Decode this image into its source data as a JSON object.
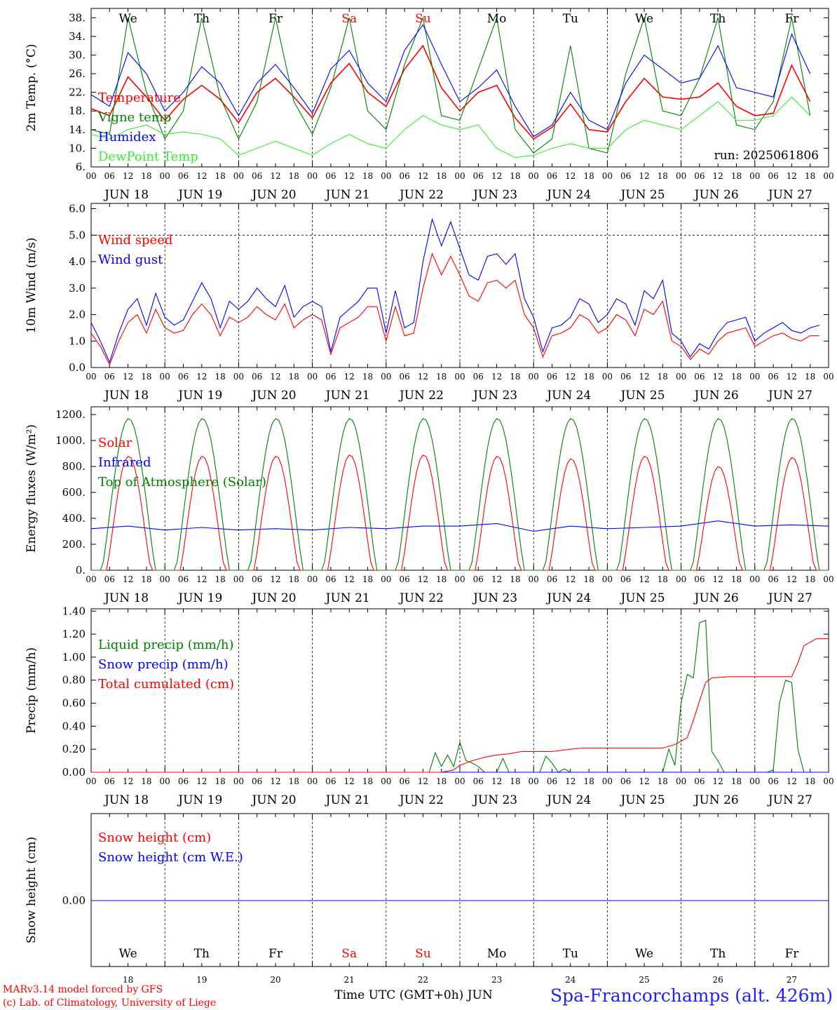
{
  "chart_data": [
    {
      "id": "temp",
      "type": "line",
      "ylabel": "2m Temp. (°C)",
      "ylim": [
        6,
        40
      ],
      "yticks": [
        6,
        10,
        14,
        18,
        22,
        26,
        30,
        34,
        38
      ],
      "ytick_labels": [
        "6.",
        "10.",
        "14.",
        "18.",
        "22.",
        "26.",
        "30.",
        "34.",
        "38."
      ],
      "run_label": "run: 2025061806",
      "series": [
        {
          "name": "Temperature",
          "color": "#ff0000",
          "x": [
            0,
            6,
            12,
            18,
            24,
            30,
            36,
            42,
            48,
            54,
            60,
            66,
            72,
            78,
            84,
            90,
            96,
            102,
            108,
            114,
            120,
            126,
            132,
            138,
            144,
            150,
            156,
            162,
            168,
            174,
            180,
            186,
            192,
            198,
            204,
            210,
            216,
            222,
            228,
            234
          ],
          "values": [
            18.5,
            17,
            25.3,
            21,
            16,
            20.5,
            23.5,
            20.5,
            15.5,
            22,
            25,
            21,
            16.5,
            24,
            28.2,
            22,
            19,
            27,
            32,
            23,
            18,
            22,
            23.5,
            16.5,
            12,
            14.5,
            19.5,
            14,
            13.5,
            20,
            25,
            21,
            20.5,
            21,
            24,
            19,
            17,
            17.5,
            27.8,
            20
          ]
        },
        {
          "name": "Vigne temp",
          "color": "#008000",
          "x": [
            0,
            6,
            12,
            18,
            24,
            30,
            36,
            42,
            48,
            54,
            60,
            66,
            72,
            78,
            84,
            90,
            96,
            102,
            108,
            114,
            120,
            126,
            132,
            138,
            144,
            150,
            156,
            162,
            168,
            174,
            180,
            186,
            192,
            198,
            204,
            210,
            216,
            222,
            228,
            234
          ],
          "values": [
            14,
            13,
            38,
            22,
            12,
            18,
            38,
            21,
            12,
            20,
            38,
            20,
            13,
            23,
            38,
            18,
            14,
            28,
            38,
            17,
            16,
            27,
            38,
            14,
            9,
            12,
            32,
            10,
            9,
            26,
            38,
            18,
            17,
            25,
            38,
            15,
            14,
            20,
            38,
            17
          ]
        },
        {
          "name": "Humidex",
          "color": "#0000ff",
          "x": [
            0,
            6,
            12,
            18,
            24,
            30,
            36,
            42,
            48,
            54,
            60,
            66,
            72,
            78,
            84,
            90,
            96,
            102,
            108,
            114,
            120,
            126,
            132,
            138,
            144,
            150,
            156,
            162,
            168,
            174,
            180,
            186,
            192,
            198,
            204,
            210,
            216,
            222,
            228,
            234
          ],
          "values": [
            21.5,
            19,
            30.5,
            26,
            18,
            22,
            27.5,
            24,
            17,
            24,
            28,
            23,
            17.5,
            27,
            31,
            24,
            20,
            31,
            36.5,
            28,
            20,
            23,
            26.8,
            19,
            12.5,
            15,
            22,
            16,
            14,
            24,
            30,
            27,
            24,
            25,
            32,
            23,
            22,
            21,
            34.5,
            26
          ]
        },
        {
          "name": "DewPoint Temp",
          "color": "#33ee33",
          "x": [
            0,
            6,
            12,
            18,
            24,
            30,
            36,
            42,
            48,
            54,
            60,
            66,
            72,
            78,
            84,
            90,
            96,
            102,
            108,
            114,
            120,
            126,
            132,
            138,
            144,
            150,
            156,
            162,
            168,
            174,
            180,
            186,
            192,
            198,
            204,
            210,
            216,
            222,
            228,
            234
          ],
          "values": [
            13,
            12,
            14,
            15,
            13,
            13.5,
            13,
            12,
            8.5,
            10,
            11.5,
            10,
            8.5,
            11,
            13,
            11,
            10,
            14,
            17,
            15,
            14,
            15,
            10,
            8,
            8.5,
            10,
            11,
            10,
            10,
            14,
            16,
            15,
            14,
            17,
            20,
            16,
            16,
            17,
            21,
            17
          ]
        }
      ]
    },
    {
      "id": "wind",
      "type": "line",
      "ylabel": "10m Wind (m/s)",
      "ylim": [
        0,
        6
      ],
      "yticks": [
        0,
        1,
        2,
        3,
        4,
        5,
        6
      ],
      "ytick_labels": [
        "0.0",
        "1.0",
        "2.0",
        "3.0",
        "4.0",
        "5.0",
        "6.0"
      ],
      "ref_line": 5,
      "series": [
        {
          "name": "Wind speed",
          "color": "#ff0000",
          "x": [
            0,
            3,
            6,
            9,
            12,
            15,
            18,
            21,
            24,
            27,
            30,
            33,
            36,
            39,
            42,
            45,
            48,
            51,
            54,
            57,
            60,
            63,
            66,
            69,
            72,
            75,
            78,
            81,
            84,
            87,
            90,
            93,
            96,
            99,
            102,
            105,
            108,
            111,
            114,
            117,
            120,
            123,
            126,
            129,
            132,
            135,
            138,
            141,
            144,
            147,
            150,
            153,
            156,
            159,
            162,
            165,
            168,
            171,
            174,
            177,
            180,
            183,
            186,
            189,
            192,
            195,
            198,
            201,
            204,
            207,
            210,
            213,
            216,
            219,
            222,
            225,
            228,
            231,
            234,
            237
          ],
          "values": [
            1.3,
            0.8,
            0.1,
            1.0,
            1.7,
            2.0,
            1.3,
            2.2,
            1.5,
            1.3,
            1.4,
            2.0,
            2.4,
            2.0,
            1.2,
            1.9,
            1.7,
            1.9,
            2.3,
            2.0,
            1.8,
            2.4,
            1.5,
            1.8,
            2.0,
            1.8,
            0.5,
            1.5,
            1.7,
            1.9,
            2.3,
            2.3,
            1.0,
            2.3,
            1.2,
            1.3,
            3.0,
            4.3,
            3.5,
            4.2,
            3.5,
            2.7,
            2.5,
            3.2,
            3.3,
            3.0,
            3.3,
            2.0,
            1.5,
            0.4,
            1.2,
            1.3,
            1.5,
            2.0,
            1.8,
            1.3,
            1.5,
            2.0,
            1.8,
            1.2,
            2.2,
            2.0,
            2.5,
            1.0,
            0.8,
            0.3,
            0.7,
            0.5,
            1.0,
            1.3,
            1.4,
            1.5,
            0.8,
            1.0,
            1.2,
            1.3,
            1.1,
            1.0,
            1.2,
            1.2
          ]
        },
        {
          "name": "Wind gust",
          "color": "#0000ff",
          "x": [
            0,
            3,
            6,
            9,
            12,
            15,
            18,
            21,
            24,
            27,
            30,
            33,
            36,
            39,
            42,
            45,
            48,
            51,
            54,
            57,
            60,
            63,
            66,
            69,
            72,
            75,
            78,
            81,
            84,
            87,
            90,
            93,
            96,
            99,
            102,
            105,
            108,
            111,
            114,
            117,
            120,
            123,
            126,
            129,
            132,
            135,
            138,
            141,
            144,
            147,
            150,
            153,
            156,
            159,
            162,
            165,
            168,
            171,
            174,
            177,
            180,
            183,
            186,
            189,
            192,
            195,
            198,
            201,
            204,
            207,
            210,
            213,
            216,
            219,
            222,
            225,
            228,
            231,
            234,
            237
          ],
          "values": [
            1.7,
            1.0,
            0.2,
            1.3,
            2.2,
            2.6,
            1.6,
            2.8,
            1.9,
            1.6,
            1.8,
            2.5,
            3.2,
            2.6,
            1.5,
            2.5,
            2.2,
            2.5,
            3.0,
            2.6,
            2.3,
            3.1,
            1.9,
            2.3,
            2.5,
            2.3,
            0.6,
            1.9,
            2.2,
            2.5,
            3.0,
            3.0,
            1.3,
            2.9,
            1.5,
            1.7,
            4.0,
            5.6,
            4.6,
            5.5,
            4.5,
            3.5,
            3.3,
            4.2,
            4.3,
            3.9,
            4.3,
            2.6,
            1.9,
            0.6,
            1.5,
            1.6,
            1.9,
            2.6,
            2.4,
            1.7,
            2.0,
            2.6,
            2.4,
            1.6,
            2.9,
            2.6,
            3.3,
            1.3,
            1.0,
            0.4,
            0.9,
            0.7,
            1.3,
            1.7,
            1.8,
            1.9,
            1.0,
            1.3,
            1.5,
            1.7,
            1.4,
            1.3,
            1.5,
            1.6
          ]
        }
      ]
    },
    {
      "id": "energy",
      "type": "line",
      "ylabel": "Energy fluxes (W/m²)",
      "ylim": [
        0,
        1200
      ],
      "yticks": [
        0,
        200,
        400,
        600,
        800,
        1000,
        1200
      ],
      "ytick_labels": [
        "0.",
        "200.",
        "400.",
        "600.",
        "800.",
        "1000.",
        "1200."
      ],
      "series": [
        {
          "name": "Solar",
          "color": "#ff0000",
          "peaks": [
            880,
            880,
            880,
            890,
            890,
            880,
            860,
            880,
            800,
            870
          ],
          "pattern": "diurnal"
        },
        {
          "name": "Infrared",
          "color": "#0000ff",
          "x": [
            0,
            12,
            24,
            36,
            48,
            60,
            72,
            84,
            96,
            108,
            120,
            132,
            144,
            156,
            168,
            180,
            192,
            204,
            216,
            228,
            240
          ],
          "values": [
            320,
            340,
            310,
            330,
            310,
            320,
            310,
            330,
            320,
            340,
            340,
            360,
            300,
            340,
            320,
            330,
            340,
            380,
            340,
            350,
            340
          ]
        },
        {
          "name": "Top of Atmosphere (Solar)",
          "color": "#008000",
          "peak": 1170,
          "pattern": "diurnal"
        }
      ]
    },
    {
      "id": "precip",
      "type": "line",
      "ylabel": "Precip (mm/h)",
      "ylim": [
        0,
        1.4
      ],
      "yticks": [
        0,
        0.2,
        0.4,
        0.6,
        0.8,
        1.0,
        1.2,
        1.4
      ],
      "ytick_labels": [
        "0.00",
        "0.20",
        "0.40",
        "0.60",
        "0.80",
        "1.00",
        "1.20",
        "1.40"
      ],
      "series": [
        {
          "name": "Liquid precip (mm/h)",
          "color": "#008000",
          "x": [
            0,
            110,
            112,
            114,
            116,
            118,
            120,
            122,
            124,
            126,
            128,
            130,
            132,
            134,
            136,
            138,
            140,
            142,
            144,
            146,
            148,
            150,
            152,
            154,
            156,
            180,
            186,
            188,
            190,
            192,
            194,
            196,
            198,
            200,
            202,
            204,
            206,
            208,
            210,
            212,
            214,
            216,
            220,
            222,
            224,
            226,
            228,
            230,
            232,
            240
          ],
          "values": [
            0,
            0,
            0.17,
            0.05,
            0.15,
            0.05,
            0.26,
            0.1,
            0.08,
            0.05,
            0,
            0,
            0,
            0.12,
            0,
            0,
            0,
            0,
            0,
            0,
            0.14,
            0.08,
            0,
            0.03,
            0,
            0,
            0,
            0.2,
            0.06,
            0.6,
            0.85,
            0.82,
            1.3,
            1.32,
            0.18,
            0.1,
            0,
            0,
            0,
            0,
            0,
            0,
            0,
            0.02,
            0.6,
            0.8,
            0.78,
            0.2,
            0,
            0
          ]
        },
        {
          "name": "Snow precip (mm/h)",
          "color": "#0000ff",
          "x": [
            0,
            240
          ],
          "values": [
            0,
            0
          ]
        },
        {
          "name": "Total cumulated (cm)",
          "color": "#ff0000",
          "x": [
            0,
            114,
            118,
            120,
            124,
            128,
            132,
            136,
            140,
            150,
            156,
            160,
            180,
            186,
            190,
            194,
            196,
            198,
            200,
            202,
            208,
            214,
            216,
            224,
            228,
            230,
            232,
            236,
            240
          ],
          "values": [
            0,
            0,
            0.02,
            0.06,
            0.1,
            0.13,
            0.15,
            0.16,
            0.18,
            0.18,
            0.2,
            0.21,
            0.21,
            0.21,
            0.24,
            0.3,
            0.45,
            0.62,
            0.78,
            0.82,
            0.83,
            0.83,
            0.83,
            0.83,
            0.83,
            0.95,
            1.1,
            1.16,
            1.16
          ]
        }
      ]
    },
    {
      "id": "snow",
      "type": "line",
      "ylabel": "Snow height (cm)",
      "yticks": [
        0
      ],
      "ytick_labels": [
        "0.00"
      ],
      "series": [
        {
          "name": "Snow height (cm)",
          "color": "#ff0000",
          "x": [
            0,
            240
          ],
          "values": [
            0,
            0
          ]
        },
        {
          "name": "Snow height (cm W.E.)",
          "color": "#0000ff",
          "x": [
            0,
            240
          ],
          "values": [
            0,
            0
          ]
        }
      ]
    }
  ],
  "x_axis": {
    "hour_labels": [
      "00",
      "06",
      "12",
      "18"
    ],
    "final_hour_label": "00",
    "dates": [
      "JUN 18",
      "JUN 19",
      "JUN 20",
      "JUN 21",
      "JUN 22",
      "JUN 23",
      "JUN 24",
      "JUN 25",
      "JUN 26",
      "JUN 27"
    ],
    "days": [
      {
        "name": "We",
        "color": "#000000"
      },
      {
        "name": "Th",
        "color": "#000000"
      },
      {
        "name": "Fr",
        "color": "#000000"
      },
      {
        "name": "Sa",
        "color": "#ff0000"
      },
      {
        "name": "Su",
        "color": "#ff0000"
      },
      {
        "name": "Mo",
        "color": "#000000"
      },
      {
        "name": "Tu",
        "color": "#000000"
      },
      {
        "name": "We",
        "color": "#000000"
      },
      {
        "name": "Th",
        "color": "#000000"
      },
      {
        "name": "Fr",
        "color": "#000000"
      }
    ],
    "day_numbers": [
      "18",
      "19",
      "20",
      "21",
      "22",
      "23",
      "24",
      "25",
      "26",
      "27"
    ],
    "title": "Time UTC (GMT+0h) JUN"
  },
  "footer": {
    "credit_line1": "MARv3.14 model forced by GFS",
    "credit_line2": "(c) Lab. of Climatology, University of Liege",
    "station": "Spa-Francorchamps (alt. 426m)"
  }
}
